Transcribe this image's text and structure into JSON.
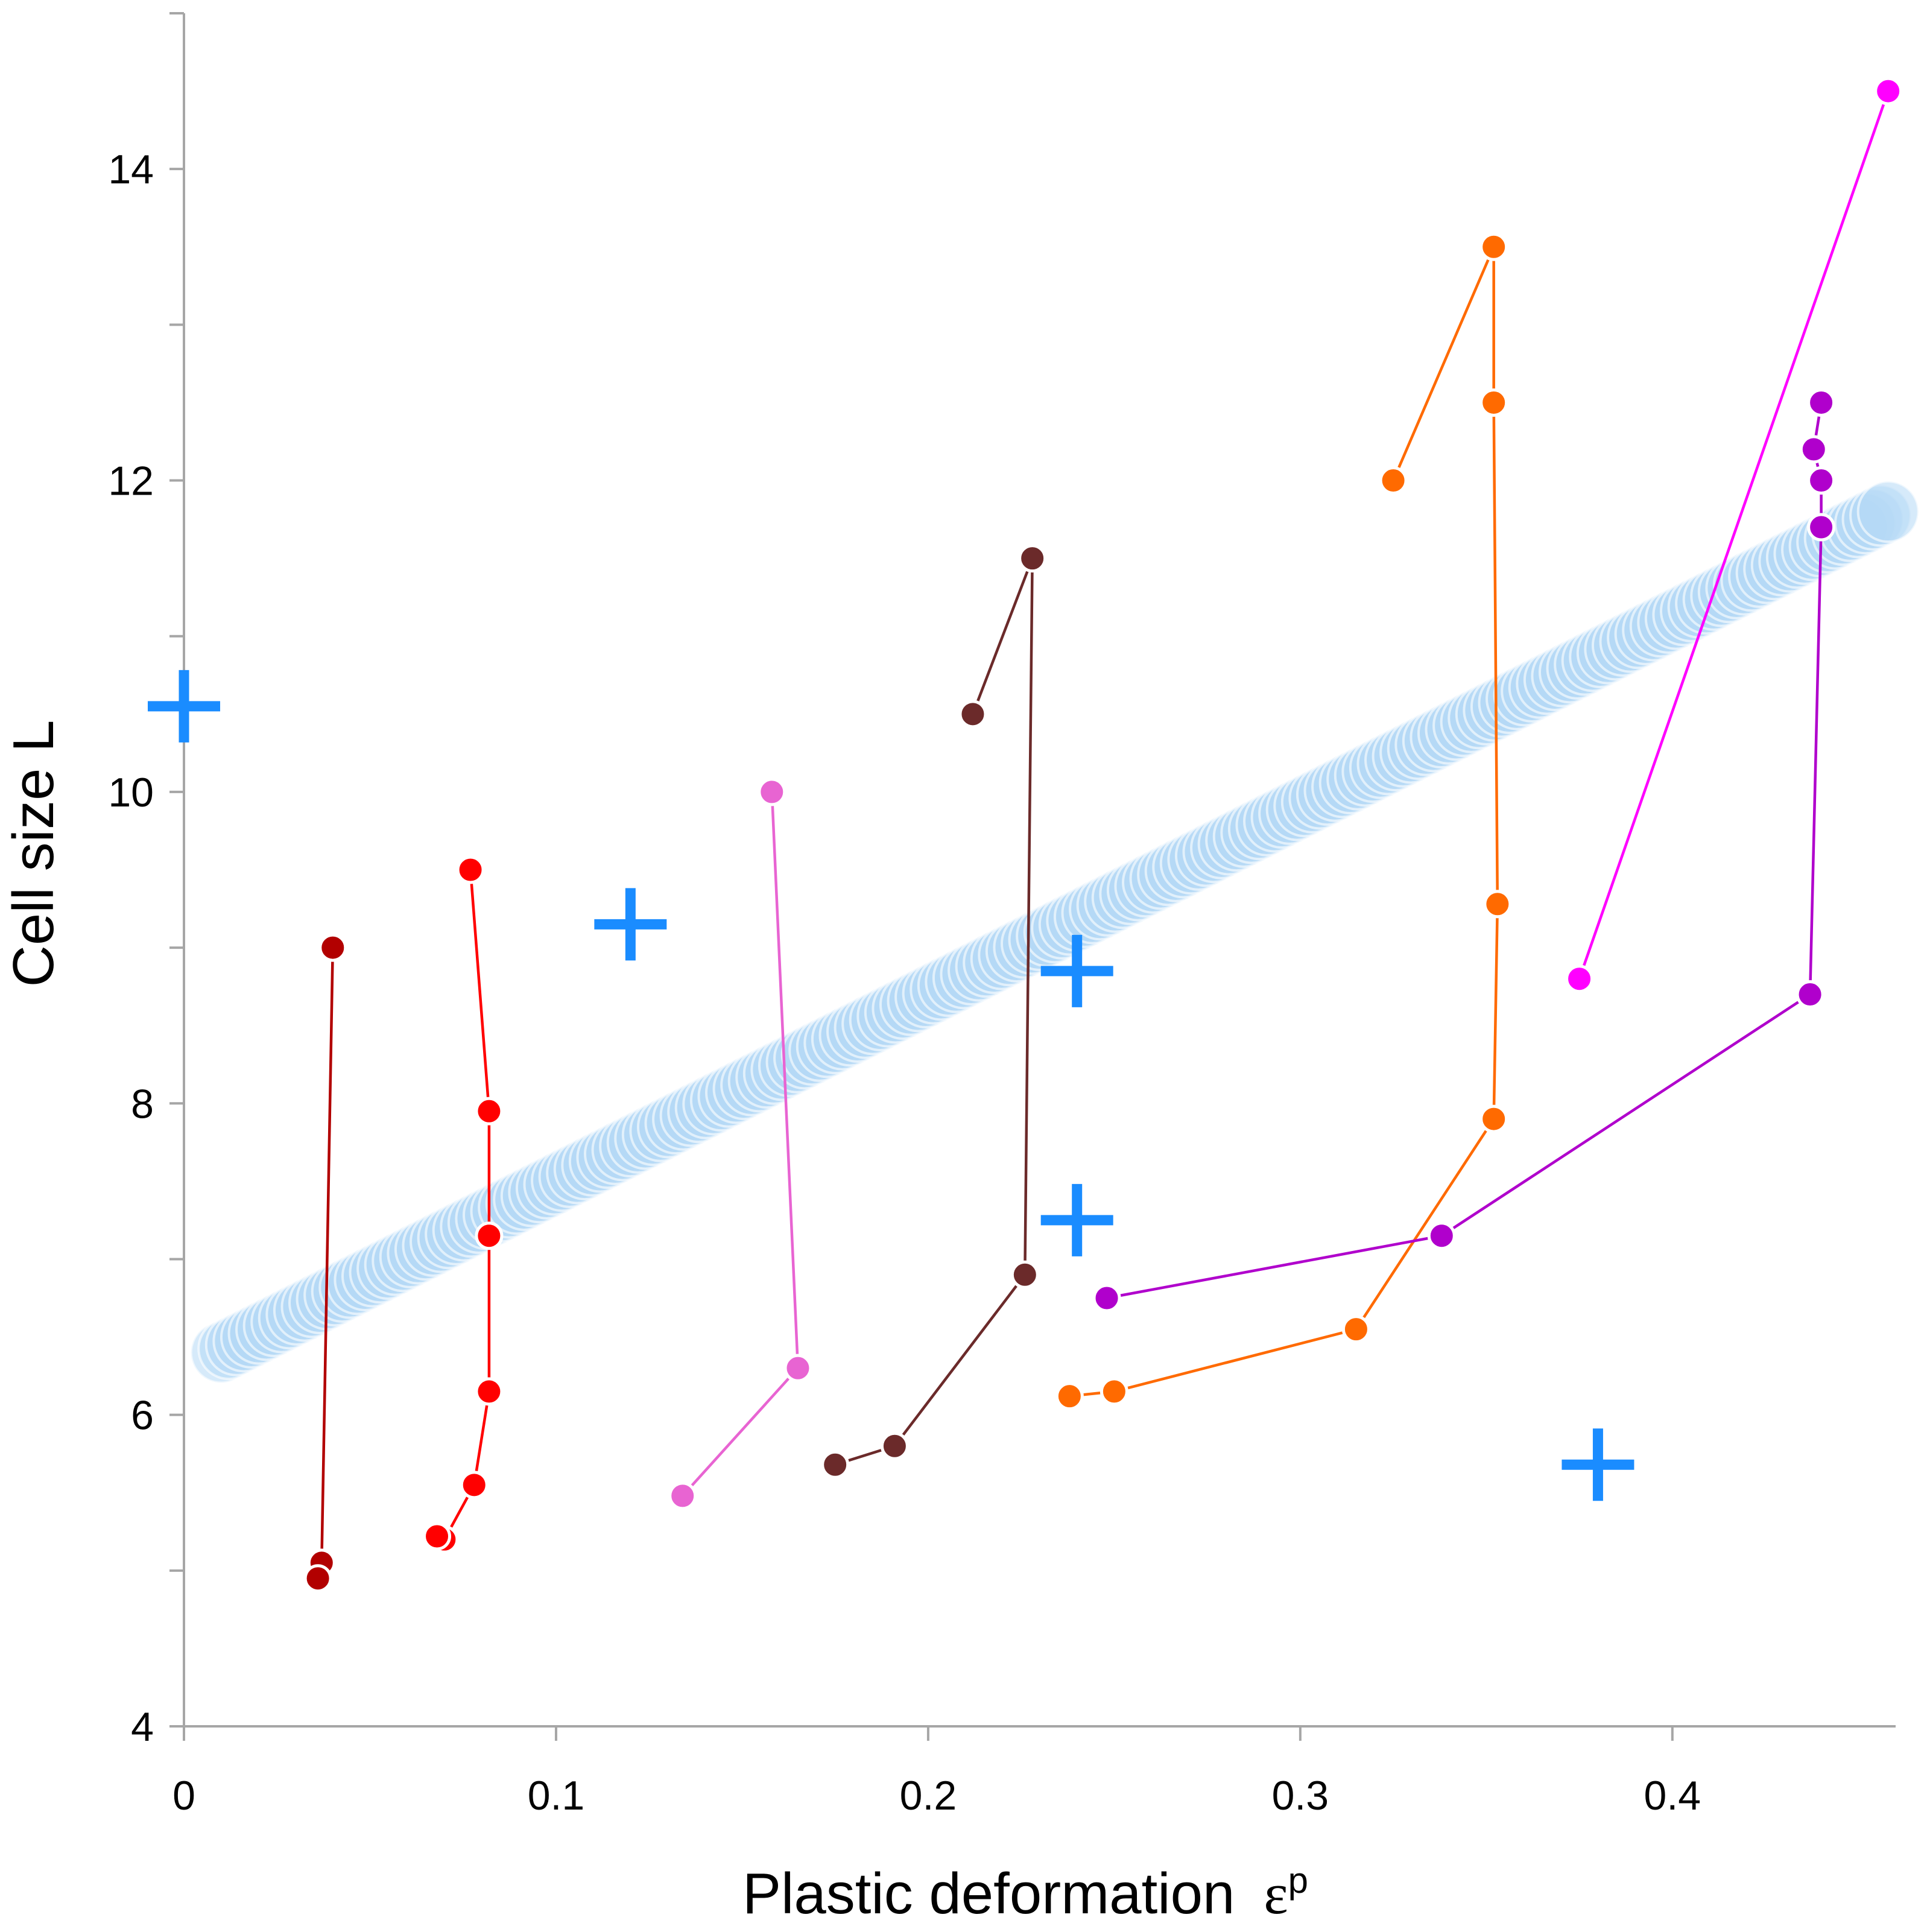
{
  "chart_data": {
    "type": "scatter",
    "title": "",
    "xlabel": "Plastic deformation",
    "xlabel_symbol": "ε",
    "xlabel_superscript": "p",
    "ylabel": "Cell size L",
    "xlim": [
      0,
      0.46
    ],
    "ylim": [
      4,
      15
    ],
    "x_ticks": [
      0,
      0.1,
      0.2,
      0.3,
      0.4
    ],
    "x_tick_labels": [
      "0",
      "0.1",
      "0.2",
      "0.3",
      "0.4"
    ],
    "y_ticks": [
      4,
      6,
      8,
      10,
      12,
      14
    ],
    "y_tick_labels": [
      "4",
      "6",
      "8",
      "10",
      "12",
      "14"
    ],
    "y_minor_ticks": [
      5,
      7,
      9,
      11,
      13,
      15
    ],
    "grid": false,
    "colors": {
      "axis": "#a6a6a6",
      "trend_band": "#b5d8f5",
      "plus_marker": "#1a8cff",
      "marker_outline": "#ffffff"
    },
    "trend_band": {
      "x": [
        0.01,
        0.458
      ],
      "y": [
        6.4,
        11.8
      ]
    },
    "series": [
      {
        "name": "dark-red",
        "color": "#b20000",
        "x": [
          0.04,
          0.037,
          0.036
        ],
        "y": [
          9.0,
          5.05,
          4.95
        ]
      },
      {
        "name": "red",
        "color": "#ff0000",
        "x": [
          0.077,
          0.082,
          0.082,
          0.082,
          0.078,
          0.07,
          0.068
        ],
        "y": [
          9.5,
          7.95,
          7.15,
          6.15,
          5.55,
          5.2,
          5.22
        ]
      },
      {
        "name": "pink",
        "color": "#e864d2",
        "x": [
          0.158,
          0.165,
          0.134
        ],
        "y": [
          10.0,
          6.3,
          5.48
        ]
      },
      {
        "name": "brown",
        "color": "#6b2a2a",
        "x": [
          0.212,
          0.228,
          0.226,
          0.191,
          0.175
        ],
        "y": [
          10.5,
          11.5,
          6.9,
          5.8,
          5.68
        ]
      },
      {
        "name": "orange",
        "color": "#ff6a00",
        "x": [
          0.325,
          0.352,
          0.352,
          0.353,
          0.352,
          0.315,
          0.25,
          0.238
        ],
        "y": [
          12.0,
          13.5,
          12.5,
          9.28,
          7.9,
          6.55,
          6.15,
          6.12
        ]
      },
      {
        "name": "purple",
        "color": "#b000cc",
        "x": [
          0.44,
          0.438,
          0.44,
          0.44,
          0.437,
          0.338,
          0.248
        ],
        "y": [
          12.5,
          12.2,
          12.0,
          11.7,
          8.7,
          7.15,
          6.75
        ]
      },
      {
        "name": "magenta",
        "color": "#ff00ff",
        "x": [
          0.458,
          0.375
        ],
        "y": [
          14.5,
          8.8
        ]
      }
    ],
    "plus_points": [
      {
        "x": 0.0,
        "y": 10.55
      },
      {
        "x": 0.12,
        "y": 9.15
      },
      {
        "x": 0.24,
        "y": 8.85
      },
      {
        "x": 0.24,
        "y": 7.25
      },
      {
        "x": 0.38,
        "y": 5.68
      }
    ]
  }
}
